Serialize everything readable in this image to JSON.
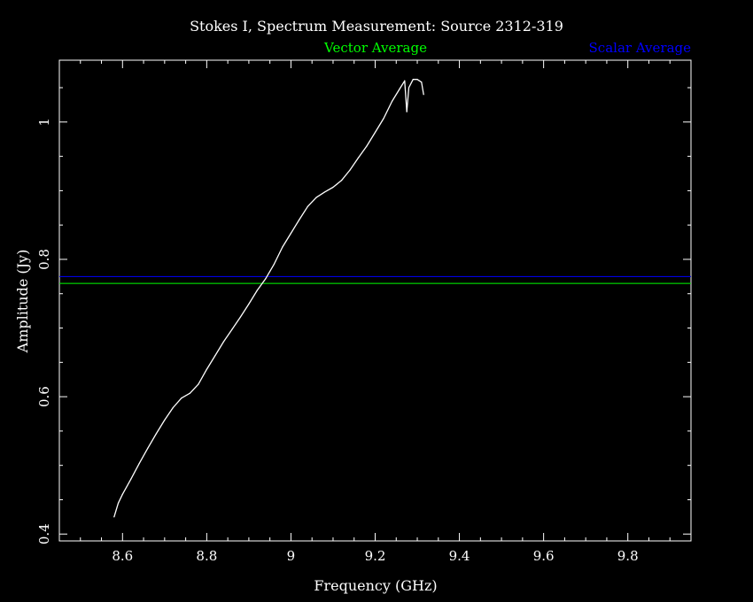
{
  "chart_data": {
    "type": "line",
    "title": "Stokes I, Spectrum Measurement: Source 2312-319",
    "xlabel": "Frequency (GHz)",
    "ylabel": "Amplitude (Jy)",
    "xlim": [
      8.45,
      9.95
    ],
    "ylim": [
      0.39,
      1.09
    ],
    "x_ticks": [
      8.6,
      8.8,
      9.0,
      9.2,
      9.4,
      9.6,
      9.8
    ],
    "x_tick_labels": [
      "8.6",
      "8.8",
      "9",
      "9.2",
      "9.4",
      "9.6",
      "9.8"
    ],
    "y_ticks": [
      0.4,
      0.6,
      0.8,
      1.0
    ],
    "y_tick_labels": [
      "0.4",
      "0.6",
      "0.8",
      "1"
    ],
    "grid": false,
    "legend_placement": "top",
    "series": [
      {
        "name": "",
        "color": "#ffffff",
        "x": [
          8.58,
          8.59,
          8.6,
          8.62,
          8.64,
          8.66,
          8.68,
          8.7,
          8.72,
          8.74,
          8.76,
          8.78,
          8.8,
          8.82,
          8.84,
          8.86,
          8.88,
          8.9,
          8.92,
          8.94,
          8.96,
          8.98,
          9.0,
          9.02,
          9.04,
          9.06,
          9.08,
          9.1,
          9.12,
          9.14,
          9.16,
          9.18,
          9.2,
          9.22,
          9.24,
          9.26,
          9.27,
          9.275,
          9.28,
          9.29,
          9.3,
          9.31,
          9.315
        ],
        "y": [
          0.425,
          0.445,
          0.458,
          0.48,
          0.503,
          0.525,
          0.546,
          0.566,
          0.584,
          0.598,
          0.605,
          0.618,
          0.64,
          0.66,
          0.68,
          0.698,
          0.716,
          0.735,
          0.755,
          0.772,
          0.793,
          0.818,
          0.838,
          0.858,
          0.877,
          0.89,
          0.898,
          0.905,
          0.915,
          0.93,
          0.948,
          0.965,
          0.985,
          1.005,
          1.03,
          1.05,
          1.06,
          1.015,
          1.05,
          1.062,
          1.062,
          1.058,
          1.04
        ]
      },
      {
        "name": "Vector Average",
        "color": "#00ff00",
        "type": "hline",
        "value": 0.765
      },
      {
        "name": "Scalar Average",
        "color": "#0000ff",
        "type": "hline",
        "value": 0.775
      }
    ]
  }
}
